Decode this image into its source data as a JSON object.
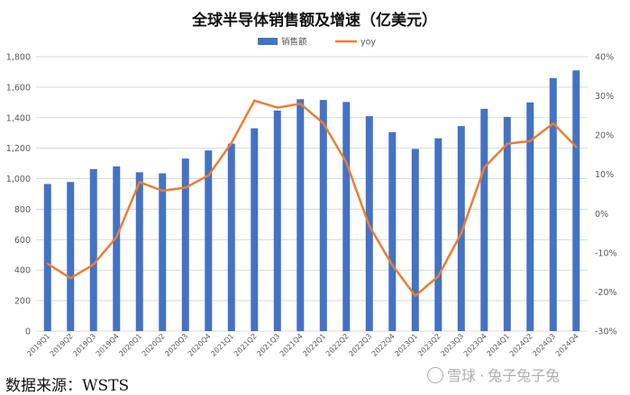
{
  "chart_data": {
    "type": "bar+line",
    "title": "全球半导体销售额及增速（亿美元）",
    "categories": [
      "2019Q1",
      "2019Q2",
      "2019Q3",
      "2019Q4",
      "2020Q1",
      "2020Q2",
      "2020Q3",
      "2020Q4",
      "2021Q1",
      "2021Q2",
      "2021Q3",
      "2021Q4",
      "2022Q1",
      "2022Q2",
      "2022Q3",
      "2022Q4",
      "2023Q1",
      "2023Q2",
      "2023Q3",
      "2023Q4",
      "2024Q1",
      "2024Q2",
      "2024Q3",
      "2024Q4"
    ],
    "series": [
      {
        "name": "销售额",
        "type": "bar",
        "axis": "left",
        "color": "#4472C4",
        "values": [
          965,
          978,
          1063,
          1080,
          1042,
          1035,
          1132,
          1185,
          1230,
          1330,
          1447,
          1521,
          1516,
          1503,
          1410,
          1305,
          1195,
          1265,
          1345,
          1458,
          1405,
          1500,
          1660,
          1710
        ]
      },
      {
        "name": "yoy",
        "type": "line",
        "axis": "right",
        "color": "#ED7D31",
        "values": [
          -12.8,
          -16.5,
          -13.0,
          -6.0,
          8.0,
          5.8,
          6.6,
          9.7,
          18.0,
          28.8,
          27.0,
          28.0,
          23.0,
          13.0,
          -3.2,
          -13.2,
          -21.0,
          -16.0,
          -5.0,
          11.7,
          17.8,
          18.5,
          23.0,
          17.0
        ]
      }
    ],
    "left_axis": {
      "min": 0,
      "max": 1800,
      "step": 200,
      "tick_labels": [
        "0",
        "200",
        "400",
        "600",
        "800",
        "1,000",
        "1,200",
        "1,400",
        "1,600",
        "1,800"
      ]
    },
    "right_axis": {
      "min": -30,
      "max": 40,
      "step": 10,
      "tick_labels": [
        "-30%",
        "-20%",
        "-10%",
        "0%",
        "10%",
        "20%",
        "30%",
        "40%"
      ]
    },
    "legend": {
      "position": "top-center",
      "entries": [
        "销售额",
        "yoy"
      ]
    },
    "grid": true
  },
  "footer": {
    "source": "数据来源：WSTS",
    "watermark_brand": "雪球",
    "watermark_user": "兔子兔子兔"
  },
  "colors": {
    "bar": "#4472C4",
    "line": "#ED7D31",
    "grid": "#D9D9D9",
    "text": "#595959"
  }
}
